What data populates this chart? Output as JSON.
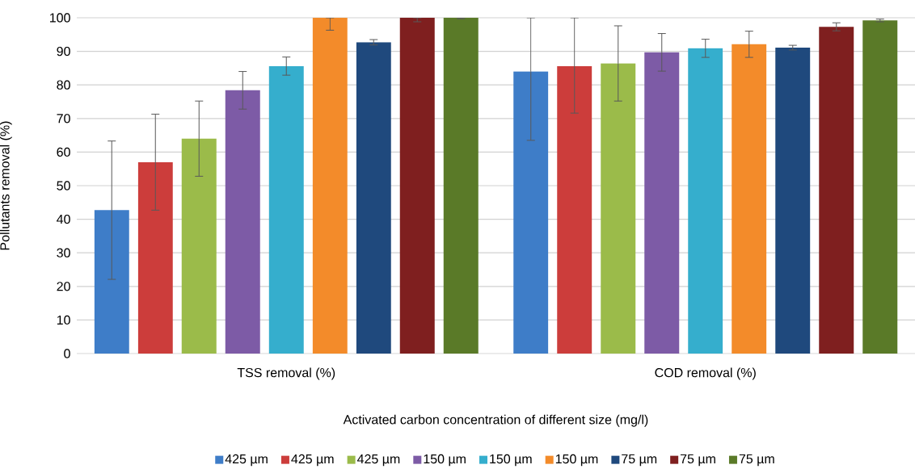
{
  "chart_data": {
    "type": "bar",
    "xlabel": "Activated carbon concentration of different size (mg/l)",
    "ylabel": "Pollutants removal (%)",
    "categories": [
      "TSS removal (%)",
      "COD removal (%)"
    ],
    "series": [
      {
        "name": "425 µm",
        "color": "#3e7dc8",
        "values": [
          42.7,
          84
        ],
        "errors": [
          20.6,
          [
            63.5,
            100
          ]
        ]
      },
      {
        "name": "425 µm",
        "color": "#cc3d3b",
        "values": [
          57,
          85.6
        ],
        "errors": [
          14.3,
          [
            71.6,
            100
          ]
        ]
      },
      {
        "name": "425 µm",
        "color": "#9bbb4a",
        "values": [
          64,
          86.4
        ],
        "errors": [
          11.2,
          11.2
        ]
      },
      {
        "name": "150 µm",
        "color": "#7d5ba6",
        "values": [
          78.4,
          89.7
        ],
        "errors": [
          5.6,
          5.6
        ]
      },
      {
        "name": "150 µm",
        "color": "#35aecd",
        "values": [
          85.6,
          90.9
        ],
        "errors": [
          2.7,
          2.7
        ]
      },
      {
        "name": "150 µm",
        "color": "#f38b2a",
        "values": [
          100,
          92.1
        ],
        "errors": [
          [
            96.3,
            100
          ],
          3.9
        ]
      },
      {
        "name": "75 µm",
        "color": "#1f497d",
        "values": [
          92.7,
          91.1
        ],
        "errors": [
          0.8,
          0.7
        ]
      },
      {
        "name": "75 µm",
        "color": "#7f1f1f",
        "values": [
          100,
          97.3
        ],
        "errors": [
          [
            98.8,
            100
          ],
          1.2
        ]
      },
      {
        "name": "75 µm",
        "color": "#5a7a28",
        "values": [
          100,
          99.2
        ],
        "errors": [
          [
            99.7,
            100
          ],
          0.4
        ]
      }
    ],
    "ylim": [
      0,
      100
    ],
    "yticks": [
      0,
      10,
      20,
      30,
      40,
      50,
      60,
      70,
      80,
      90,
      100
    ],
    "grid": "y",
    "legend": "bottom"
  }
}
